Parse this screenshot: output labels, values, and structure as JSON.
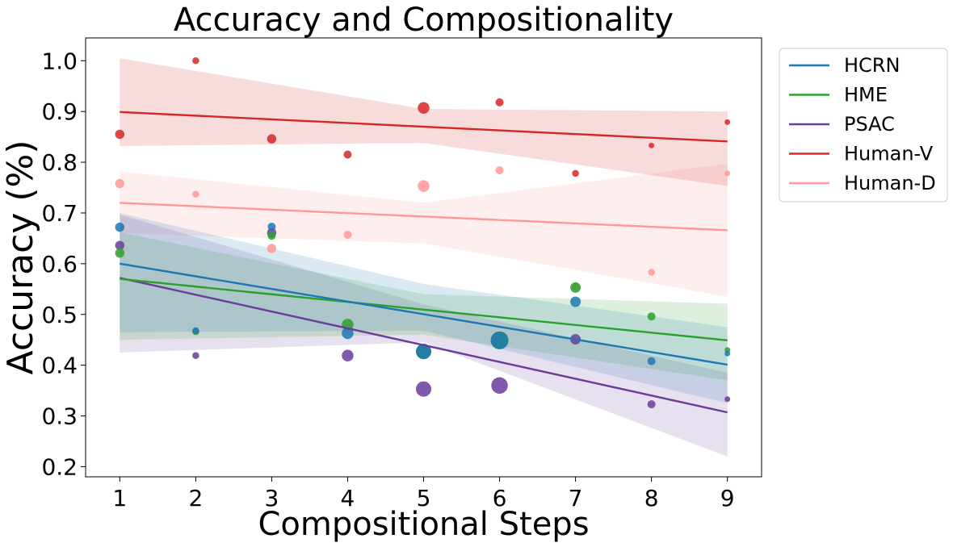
{
  "chart_data": {
    "type": "scatter",
    "title": "Accuracy and Compositionality",
    "xlabel": "Compositional Steps",
    "ylabel": "Accuracy (%)",
    "xlim": [
      0.55,
      9.45
    ],
    "ylim": [
      0.18,
      1.045
    ],
    "xticks": [
      1,
      2,
      3,
      4,
      5,
      6,
      7,
      8,
      9
    ],
    "yticks": [
      0.2,
      0.3,
      0.4,
      0.5,
      0.6,
      0.7,
      0.8,
      0.9,
      1.0
    ],
    "ytick_labels": [
      "0.2",
      "0.3",
      "0.4",
      "0.5",
      "0.6",
      "0.7",
      "0.8",
      "0.9",
      "1.0"
    ],
    "legend_position": "outside-top-right",
    "series": [
      {
        "name": "Human-D",
        "color": "#ff9896",
        "points": [
          {
            "x": 1,
            "y": 0.758,
            "size": 5
          },
          {
            "x": 2,
            "y": 0.737,
            "size": 3
          },
          {
            "x": 3,
            "y": 0.63,
            "size": 5
          },
          {
            "x": 4,
            "y": 0.657,
            "size": 4
          },
          {
            "x": 5,
            "y": 0.753,
            "size": 7
          },
          {
            "x": 6,
            "y": 0.784,
            "size": 4
          },
          {
            "x": 7,
            "y": 0.554,
            "size": 4
          },
          {
            "x": 8,
            "y": 0.583,
            "size": 3
          },
          {
            "x": 9,
            "y": 0.778,
            "size": 2
          }
        ],
        "fit": {
          "y_at_1": 0.72,
          "y_at_9": 0.666
        },
        "band": {
          "upper_at_1": 0.782,
          "upper_mid": 0.72,
          "upper_at_9": 0.797,
          "lower_at_1": 0.66,
          "lower_mid": 0.64,
          "lower_at_9": 0.535
        }
      },
      {
        "name": "Human-V",
        "color": "#d62728",
        "points": [
          {
            "x": 1,
            "y": 0.855,
            "size": 5
          },
          {
            "x": 2,
            "y": 1.0,
            "size": 3
          },
          {
            "x": 3,
            "y": 0.846,
            "size": 5
          },
          {
            "x": 4,
            "y": 0.815,
            "size": 4
          },
          {
            "x": 5,
            "y": 0.907,
            "size": 7
          },
          {
            "x": 6,
            "y": 0.918,
            "size": 4
          },
          {
            "x": 7,
            "y": 0.778,
            "size": 3
          },
          {
            "x": 8,
            "y": 0.833,
            "size": 2
          },
          {
            "x": 9,
            "y": 0.879,
            "size": 2
          }
        ],
        "fit": {
          "y_at_1": 0.899,
          "y_at_9": 0.841
        },
        "band": {
          "upper_at_1": 1.005,
          "upper_mid": 0.905,
          "upper_at_9": 0.9,
          "lower_at_1": 0.832,
          "lower_mid": 0.838,
          "lower_at_9": 0.753
        }
      },
      {
        "name": "PSAC",
        "color": "#6a3d9a",
        "points": [
          {
            "x": 1,
            "y": 0.636,
            "size": 5
          },
          {
            "x": 2,
            "y": 0.419,
            "size": 3
          },
          {
            "x": 3,
            "y": 0.661,
            "size": 5
          },
          {
            "x": 4,
            "y": 0.419,
            "size": 7
          },
          {
            "x": 5,
            "y": 0.353,
            "size": 10
          },
          {
            "x": 6,
            "y": 0.36,
            "size": 11
          },
          {
            "x": 7,
            "y": 0.451,
            "size": 6
          },
          {
            "x": 8,
            "y": 0.323,
            "size": 4
          },
          {
            "x": 9,
            "y": 0.333,
            "size": 2
          }
        ],
        "fit": {
          "y_at_1": 0.572,
          "y_at_9": 0.307
        },
        "band": {
          "upper_at_1": 0.697,
          "upper_mid": 0.52,
          "upper_at_9": 0.385,
          "lower_at_1": 0.425,
          "lower_mid": 0.445,
          "lower_at_9": 0.22
        }
      },
      {
        "name": "HME",
        "color": "#2ca02c",
        "points": [
          {
            "x": 1,
            "y": 0.621,
            "size": 5
          },
          {
            "x": 2,
            "y": 0.466,
            "size": 3
          },
          {
            "x": 3,
            "y": 0.655,
            "size": 4
          },
          {
            "x": 4,
            "y": 0.48,
            "size": 7
          },
          {
            "x": 5,
            "y": 0.427,
            "size": 10
          },
          {
            "x": 6,
            "y": 0.449,
            "size": 12
          },
          {
            "x": 7,
            "y": 0.553,
            "size": 6
          },
          {
            "x": 8,
            "y": 0.496,
            "size": 4
          },
          {
            "x": 9,
            "y": 0.43,
            "size": 2
          }
        ],
        "fit": {
          "y_at_1": 0.57,
          "y_at_9": 0.449
        },
        "band": {
          "upper_at_1": 0.662,
          "upper_mid": 0.54,
          "upper_at_9": 0.521,
          "lower_at_1": 0.45,
          "lower_mid": 0.46,
          "lower_at_9": 0.37
        }
      },
      {
        "name": "HCRN",
        "color": "#1f77b4",
        "points": [
          {
            "x": 1,
            "y": 0.672,
            "size": 5
          },
          {
            "x": 2,
            "y": 0.468,
            "size": 3
          },
          {
            "x": 3,
            "y": 0.673,
            "size": 4
          },
          {
            "x": 4,
            "y": 0.463,
            "size": 7
          },
          {
            "x": 5,
            "y": 0.427,
            "size": 10
          },
          {
            "x": 6,
            "y": 0.449,
            "size": 12
          },
          {
            "x": 7,
            "y": 0.525,
            "size": 6
          },
          {
            "x": 8,
            "y": 0.408,
            "size": 4
          },
          {
            "x": 9,
            "y": 0.423,
            "size": 2
          }
        ],
        "fit": {
          "y_at_1": 0.6,
          "y_at_9": 0.401
        },
        "band": {
          "upper_at_1": 0.7,
          "upper_mid": 0.56,
          "upper_at_9": 0.475,
          "lower_at_1": 0.465,
          "lower_mid": 0.468,
          "lower_at_9": 0.325
        }
      }
    ],
    "legend": [
      "HCRN",
      "HME",
      "PSAC",
      "Human-V",
      "Human-D"
    ]
  }
}
